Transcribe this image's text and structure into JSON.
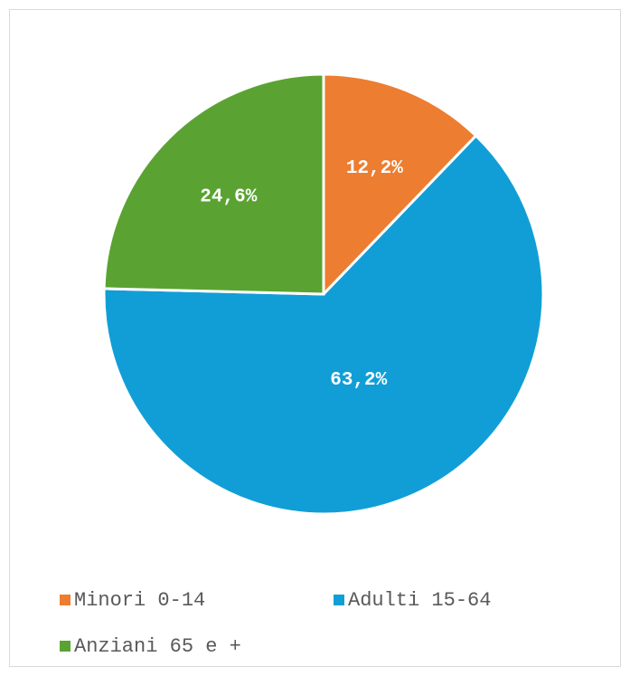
{
  "chart_data": {
    "type": "pie",
    "categories": [
      "Minori 0-14",
      "Adulti 15-64",
      "Anziani 65 e +"
    ],
    "values": [
      12.2,
      63.2,
      24.6
    ],
    "value_labels": [
      "12,2%",
      "63,2%",
      "24,6%"
    ],
    "colors": [
      "#ED7D31",
      "#119ED6",
      "#5AA332"
    ],
    "legend": "bottom"
  }
}
